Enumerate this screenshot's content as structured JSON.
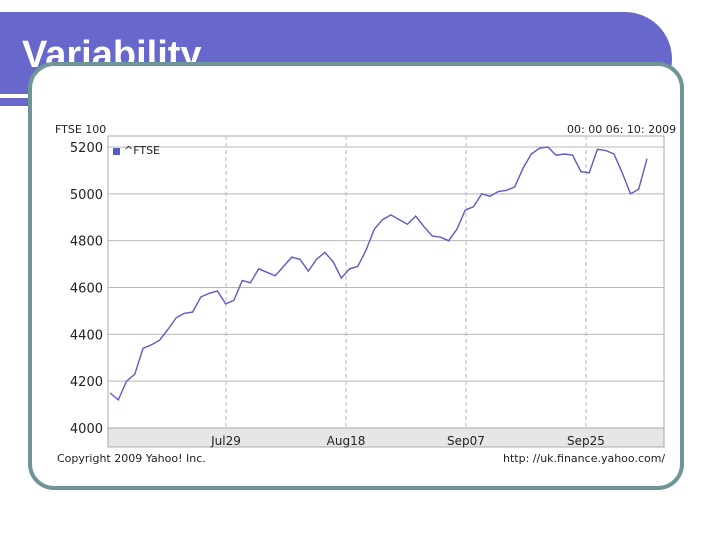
{
  "slide": {
    "title": "Variability"
  },
  "chart_header": {
    "left": "FTSE 100",
    "right": "00: 00 06: 10: 2009"
  },
  "chart_footer": {
    "left": "Copyright 2009 Yahoo! Inc.",
    "right": "http: //uk.finance.yahoo.com/"
  },
  "colors": {
    "title_bar": "#6767cc",
    "frame": "#6e9696",
    "series": "#5b5bc8",
    "grid": "#b8b8b8"
  },
  "chart_data": {
    "type": "line",
    "title": "FTSE 100",
    "xlabel": "",
    "ylabel": "",
    "ylim": [
      4000,
      5200
    ],
    "yticks": [
      4000,
      4200,
      4400,
      4600,
      4800,
      5000,
      5200
    ],
    "xticks": [
      "Jul29",
      "Aug18",
      "Sep07",
      "Sep25"
    ],
    "legend": {
      "position": "top-left",
      "entries": [
        "^FTSE"
      ]
    },
    "grid": true,
    "series": [
      {
        "name": "^FTSE",
        "values": [
          4150,
          4120,
          4200,
          4230,
          4340,
          4355,
          4375,
          4420,
          4470,
          4490,
          4495,
          4560,
          4575,
          4585,
          4530,
          4545,
          4630,
          4620,
          4680,
          4665,
          4650,
          4690,
          4730,
          4720,
          4670,
          4720,
          4750,
          4710,
          4640,
          4680,
          4690,
          4760,
          4850,
          4890,
          4910,
          4890,
          4870,
          4905,
          4860,
          4820,
          4815,
          4800,
          4850,
          4930,
          4945,
          5000,
          4990,
          5010,
          5015,
          5030,
          5110,
          5170,
          5195,
          5200,
          5165,
          5170,
          5165,
          5095,
          5090,
          5190,
          5185,
          5170,
          5090,
          5000,
          5020,
          5150
        ]
      }
    ]
  }
}
